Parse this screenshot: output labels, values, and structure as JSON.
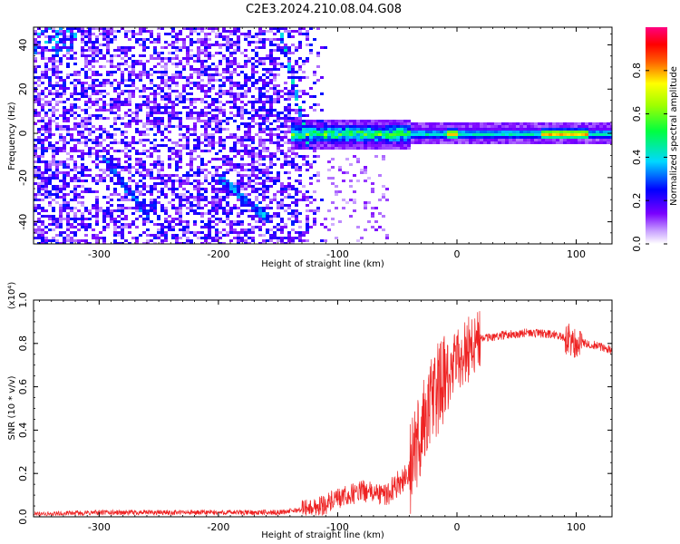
{
  "chart_data": [
    {
      "type": "heatmap",
      "title": "C2E3.2024.210.08.04.G08",
      "xlabel": "Height of straight line (km)",
      "ylabel": "Frequency (Hz)",
      "xlim": [
        -355,
        130
      ],
      "ylim": [
        -50,
        48
      ],
      "x_ticks": [
        -300,
        -200,
        -100,
        0,
        100
      ],
      "y_ticks": [
        -40,
        -20,
        0,
        20,
        40
      ],
      "colorbar": {
        "label": "Normalized spectral amplitude",
        "range": [
          0.0,
          1.0
        ],
        "ticks": [
          0.0,
          0.2,
          0.4,
          0.6,
          0.8
        ],
        "colormap": [
          "#ffffff",
          "#7a00ff",
          "#0000ff",
          "#00e5ff",
          "#00ff00",
          "#ffff00",
          "#ff0000",
          "#ff0080"
        ]
      },
      "features": {
        "dominant_band_frequency_hz": 0,
        "band_start_height_km": -130,
        "noise_extent_height_km": [
          -355,
          -110
        ]
      }
    },
    {
      "type": "line",
      "xlabel": "Height of straight line (km)",
      "ylabel": "SNR (10 * v/v)",
      "y_multiplier": "(x10⁴)",
      "xlim": [
        -355,
        130
      ],
      "ylim": [
        0.0,
        1.0
      ],
      "x_ticks": [
        -300,
        -200,
        -100,
        0,
        100
      ],
      "y_ticks": [
        0.0,
        0.2,
        0.4,
        0.6,
        0.8,
        1.0
      ],
      "series": [
        {
          "color": "#ee2222",
          "x": [
            -355,
            -300,
            -250,
            -200,
            -150,
            -120,
            -100,
            -80,
            -60,
            -40,
            -30,
            -20,
            -15,
            -10,
            -5,
            0,
            10,
            20,
            30,
            40,
            60,
            80,
            95,
            100,
            110,
            130
          ],
          "y": [
            0.01,
            0.02,
            0.02,
            0.02,
            0.02,
            0.04,
            0.08,
            0.12,
            0.1,
            0.2,
            0.4,
            0.55,
            0.6,
            0.62,
            0.66,
            0.72,
            0.78,
            0.82,
            0.83,
            0.84,
            0.85,
            0.84,
            0.82,
            0.8,
            0.8,
            0.77
          ]
        }
      ]
    }
  ]
}
